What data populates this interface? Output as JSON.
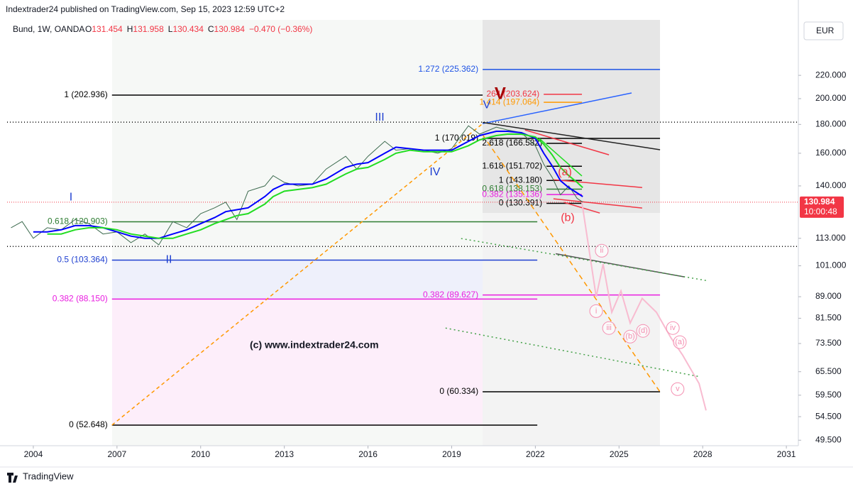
{
  "chart_data": {
    "type": "line",
    "publisher": "Indextrader24 published on TradingView.com, Sep 15, 2023 12:59 UTC+2",
    "symbol": "Bund, 1W, OANDA",
    "ohlc": [
      {
        "label": "O",
        "value": "131.454"
      },
      {
        "label": "H",
        "value": "131.958"
      },
      {
        "label": "L",
        "value": "130.434"
      },
      {
        "label": "C",
        "value": "130.984"
      }
    ],
    "change": "−0.470 (−0.36%)",
    "currency": "EUR",
    "watermark": "(c) www.indextrader24.com",
    "brand": "TradingView",
    "log_scale": true,
    "xlim": [
      2003.06,
      2031.43
    ],
    "xticks": [
      2004,
      2007,
      2010,
      2013,
      2016,
      2019,
      2022,
      2025,
      2028,
      2031
    ],
    "ylim": [
      48.4,
      276
    ],
    "yticks": [
      {
        "value": 49.5,
        "label": "49.500"
      },
      {
        "value": 54.5,
        "label": "54.500"
      },
      {
        "value": 59.5,
        "label": "59.500"
      },
      {
        "value": 65.5,
        "label": "65.500"
      },
      {
        "value": 73.5,
        "label": "73.500"
      },
      {
        "value": 81.5,
        "label": "81.500"
      },
      {
        "value": 89,
        "label": "89.000"
      },
      {
        "value": 101,
        "label": "101.000"
      },
      {
        "value": 113,
        "label": "113.000"
      },
      {
        "value": 140,
        "label": "140.000"
      },
      {
        "value": 160,
        "label": "160.000"
      },
      {
        "value": 180,
        "label": "180.000"
      },
      {
        "value": 200,
        "label": "200.000"
      },
      {
        "value": 220,
        "label": "220.000"
      }
    ],
    "last_price": {
      "value": 130.984,
      "label": "130.984"
    },
    "countdown": "10:00:48",
    "x": [
      2003.2,
      2003.6,
      2004,
      2004.5,
      2005,
      2005.5,
      2006,
      2006.5,
      2007,
      2007.5,
      2008,
      2008.5,
      2009,
      2009.5,
      2010,
      2010.5,
      2010.9,
      2011.3,
      2011.7,
      2012.3,
      2012.6,
      2013,
      2013.5,
      2014,
      2014.5,
      2015.2,
      2015.6,
      2016,
      2016.6,
      2017,
      2017.5,
      2018,
      2018.5,
      2019,
      2019.6,
      2020,
      2020.6,
      2021,
      2021.5,
      2022,
      2022.3,
      2022.6,
      2022.9,
      2023.2,
      2023.5,
      2023.7
    ],
    "series": [
      {
        "color": "#3d6b4f",
        "width": 1,
        "values": [
          118,
          121,
          113,
          118,
          117,
          122,
          120,
          115,
          116,
          111,
          115,
          110,
          121,
          118,
          125,
          128,
          131,
          122,
          137,
          140,
          146,
          142,
          140,
          141,
          150,
          158,
          150,
          158,
          168,
          162,
          163,
          162,
          160,
          163,
          179,
          173,
          178,
          176,
          174,
          165,
          153,
          145,
          135,
          140,
          133,
          131
        ]
      },
      {
        "color": "#0000ff",
        "width": 2,
        "values": [
          null,
          null,
          116,
          116,
          117,
          119,
          119,
          118,
          116,
          114,
          113,
          113,
          115,
          117,
          120,
          123,
          126,
          127,
          128,
          134,
          138,
          141,
          141,
          141,
          144,
          151,
          153,
          154,
          160,
          164,
          163,
          162,
          162,
          162,
          168,
          172,
          175,
          175,
          174,
          170,
          160,
          152,
          143,
          139,
          136,
          134
        ]
      },
      {
        "color": "#22dd22",
        "width": 2,
        "values": [
          null,
          null,
          null,
          115,
          115,
          117,
          118,
          118,
          117,
          115,
          114,
          113,
          113,
          115,
          117,
          120,
          122,
          124,
          125,
          130,
          134,
          137,
          138,
          139,
          141,
          147,
          150,
          151,
          156,
          160,
          162,
          161,
          161,
          161,
          165,
          169,
          172,
          173,
          173,
          171,
          166,
          159,
          151,
          146,
          142,
          139
        ]
      }
    ],
    "levels": [
      {
        "label": "1.272 (225.362)",
        "value": 225.362,
        "color": "#1e53e5",
        "x0": 2020.11,
        "x1": 2026.47
      },
      {
        "label": "1 (202.936)",
        "value": 202.936,
        "color": "#000000",
        "x0": 2006.82,
        "x1": 2020.11
      },
      {
        "label": "264 (203.624)",
        "value": 203.624,
        "color": "#f23645",
        "x0": 2022.3,
        "x1": 2023.67
      },
      {
        "label": "1.414 (197.064)",
        "value": 197.064,
        "color": "#ff9800",
        "x0": 2022.3,
        "x1": 2023.67
      },
      {
        "label": "1 (170.019)",
        "value": 170.019,
        "color": "#000000",
        "x0": 2020.11,
        "x1": 2026.47
      },
      {
        "label": "2.618 (166.582)",
        "value": 166.582,
        "color": "#000000",
        "x0": 2022.4,
        "x1": 2023.67
      },
      {
        "label": "1.618 (151.702)",
        "value": 151.702,
        "color": "#000000",
        "x0": 2022.4,
        "x1": 2023.67
      },
      {
        "label": "1 (143.180)",
        "value": 143.18,
        "color": "#000000",
        "x0": 2022.4,
        "x1": 2023.67
      },
      {
        "label": "0.618 (138.153)",
        "value": 138.153,
        "color": "#2e7d32",
        "x0": 2022.4,
        "x1": 2023.67
      },
      {
        "label": "0.382 (135.136)",
        "value": 135.136,
        "color": "#e91ee0",
        "x0": 2022.4,
        "x1": 2023.67
      },
      {
        "label": "0 (130.391)",
        "value": 130.391,
        "color": "#000000",
        "x0": 2022.4,
        "x1": 2023.67
      },
      {
        "label": "0.618 (120.903)",
        "value": 120.903,
        "color": "#2e7d32",
        "x0": 2006.82,
        "x1": 2022.07
      },
      {
        "label": "0.5 (103.364)",
        "value": 103.364,
        "color": "#1e3fd0",
        "x0": 2006.82,
        "x1": 2022.07
      },
      {
        "label": "0.382 (89.627)",
        "value": 89.627,
        "color": "#e91ee0",
        "x0": 2020.11,
        "x1": 2026.47
      },
      {
        "label": "0.382 (88.150)",
        "value": 88.15,
        "color": "#e91ee0",
        "x0": 2006.82,
        "x1": 2022.07
      },
      {
        "label": "0 (60.334)",
        "value": 60.334,
        "color": "#000000",
        "x0": 2020.11,
        "x1": 2026.47
      },
      {
        "label": "0 (52.648)",
        "value": 52.648,
        "color": "#000000",
        "x0": 2006.82,
        "x1": 2022.07
      }
    ],
    "trendlines": [
      {
        "color": "#000000",
        "dash": "1 3",
        "x": [
          2003.06,
          2031.43
        ],
        "y": [
          181.7,
          181.7
        ]
      },
      {
        "color": "#000000",
        "dash": "1 3",
        "x": [
          2003.06,
          2031.43
        ],
        "y": [
          109.3,
          109.3
        ]
      },
      {
        "color": "#ff9800",
        "dash": "5 4",
        "x": [
          2006.82,
          2020.11
        ],
        "y": [
          52.65,
          180.6
        ]
      },
      {
        "color": "#ff9800",
        "dash": "7 5",
        "x": [
          2020.11,
          2026.47
        ],
        "y": [
          172.5,
          60.3
        ]
      },
      {
        "color": "#2962ff",
        "dash": "",
        "x": [
          2020.11,
          2025.45
        ],
        "y": [
          180.6,
          204.7
        ]
      },
      {
        "color": "#222222",
        "dash": "",
        "x": [
          2020.11,
          2026.47
        ],
        "y": [
          181.5,
          162.3
        ]
      },
      {
        "color": "#f23645",
        "dash": "",
        "x": [
          2021.63,
          2024.64
        ],
        "y": [
          176,
          159
        ]
      },
      {
        "color": "#f23645",
        "dash": "",
        "x": [
          2022.65,
          2025.83
        ],
        "y": [
          143.6,
          139.1
        ]
      },
      {
        "color": "#f23645",
        "dash": "",
        "x": [
          2022.65,
          2025.83
        ],
        "y": [
          132.8,
          127.9
        ]
      },
      {
        "color": "#f23645",
        "dash": "",
        "x": [
          2023.03,
          2024.31
        ],
        "y": [
          130.9,
          125.3
        ]
      },
      {
        "color": "#22dd22",
        "dash": "",
        "x": [
          2022.14,
          2023.67
        ],
        "y": [
          170,
          145.8
        ]
      },
      {
        "color": "#555555",
        "dash": "",
        "x": [
          2022.73,
          2027.36
        ],
        "y": [
          106.1,
          96.5
        ]
      },
      {
        "color": "#43a047",
        "dash": "2 4",
        "x": [
          2019.34,
          2028.12
        ],
        "y": [
          112.9,
          95.1
        ]
      },
      {
        "color": "#43a047",
        "dash": "2 4",
        "x": [
          2018.78,
          2027.87
        ],
        "y": [
          78.3,
          64.2
        ]
      }
    ],
    "projection": {
      "color": "#f8bbd0",
      "x": [
        2023.67,
        2024.18,
        2024.43,
        2024.74,
        2025.07,
        2025.4,
        2025.83,
        2026.34,
        2026.85,
        2027.28,
        2027.87,
        2028.12
      ],
      "y": [
        130.9,
        89,
        101.7,
        83.5,
        91.1,
        79.9,
        88.4,
        83.5,
        75.4,
        70.1,
        62.4,
        55.9
      ]
    },
    "wave_labels": [
      {
        "text": "I",
        "x": 2005.35,
        "y": 133.6,
        "color": "#1e3fd0"
      },
      {
        "text": "II",
        "x": 2008.86,
        "y": 103.4,
        "color": "#1e3fd0"
      },
      {
        "text": "III",
        "x": 2016.42,
        "y": 185,
        "color": "#1e3fd0"
      },
      {
        "text": "IV",
        "x": 2018.4,
        "y": 147.9,
        "color": "#1e3fd0"
      },
      {
        "text": "V",
        "x": 2020.26,
        "y": 194.8,
        "color": "#1e3fd0"
      },
      {
        "text": "V",
        "x": 2020.74,
        "y": 203.5,
        "color": "#a50000"
      },
      {
        "text": "(a)",
        "x": 2023.06,
        "y": 148,
        "color": "#f23645"
      },
      {
        "text": "(b)",
        "x": 2023.16,
        "y": 122.8,
        "color": "#f23645"
      },
      {
        "text": "ii",
        "x": 2024.38,
        "y": 107.4,
        "color": "#f48fb1"
      },
      {
        "text": "i",
        "x": 2024.18,
        "y": 83.9,
        "color": "#f48fb1"
      },
      {
        "text": "iii",
        "x": 2024.64,
        "y": 78.3,
        "color": "#f48fb1"
      },
      {
        "text": "(b)",
        "x": 2025.4,
        "y": 75.6,
        "color": "#f48fb1"
      },
      {
        "text": "(d)",
        "x": 2025.86,
        "y": 77.4,
        "color": "#f48fb1"
      },
      {
        "text": "iv",
        "x": 2026.93,
        "y": 78.3,
        "color": "#f48fb1"
      },
      {
        "text": "(a)",
        "x": 2027.18,
        "y": 73.9,
        "color": "#f48fb1"
      },
      {
        "text": "v",
        "x": 2027.1,
        "y": 61,
        "color": "#f48fb1"
      }
    ]
  }
}
